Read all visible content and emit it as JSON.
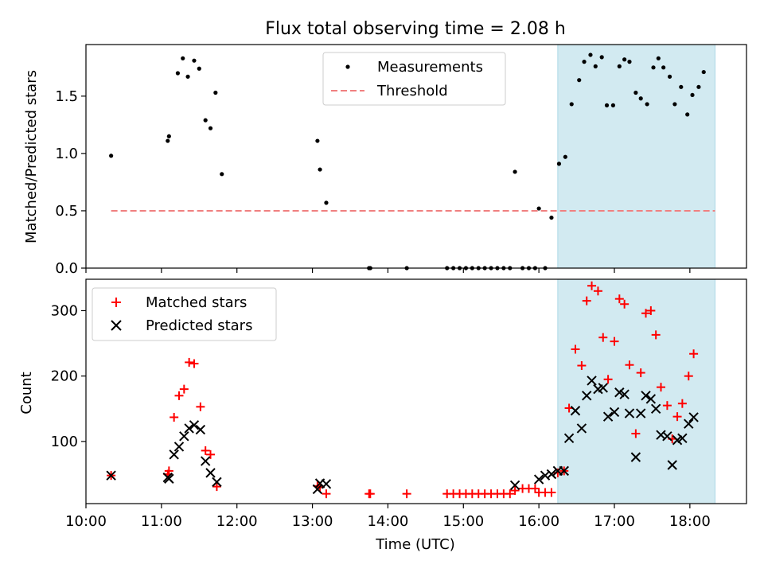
{
  "title": "Flux total observing time = 2.08 h",
  "colors": {
    "measurement": "#000000",
    "threshold": "#f08080",
    "matched": "#ff0000",
    "predicted": "#000000",
    "shade": "#add8e6"
  },
  "chart_data": [
    {
      "type": "scatter",
      "panel": "top",
      "ylabel": "Matched/Predicted stars",
      "ylim": [
        0,
        1.95
      ],
      "yticks": [
        0.0,
        0.5,
        1.0,
        1.5
      ],
      "yticklabels": [
        "0.0",
        "0.5",
        "1.0",
        "1.5"
      ],
      "xlim": [
        "10:00",
        "18:45"
      ],
      "shaded_interval": [
        "16:15",
        "18:20"
      ],
      "legend": {
        "placement": "top-center",
        "entries": [
          "Measurements",
          "Threshold"
        ]
      },
      "threshold": {
        "name": "Threshold",
        "value": 0.5,
        "x": [
          "10:20",
          "18:20"
        ]
      },
      "series": [
        {
          "name": "Measurements",
          "marker": "dot",
          "points": [
            [
              "10:20",
              0.98
            ],
            [
              "11:05",
              1.11
            ],
            [
              "11:06",
              1.15
            ],
            [
              "11:13",
              1.7
            ],
            [
              "11:17",
              1.83
            ],
            [
              "11:21",
              1.67
            ],
            [
              "11:26",
              1.81
            ],
            [
              "11:30",
              1.74
            ],
            [
              "11:35",
              1.29
            ],
            [
              "11:39",
              1.22
            ],
            [
              "11:43",
              1.53
            ],
            [
              "11:48",
              0.82
            ],
            [
              "13:04",
              1.11
            ],
            [
              "13:06",
              0.86
            ],
            [
              "13:11",
              0.57
            ],
            [
              "13:45",
              0.0
            ],
            [
              "13:46",
              0.0
            ],
            [
              "14:15",
              0.0
            ],
            [
              "14:47",
              0.0
            ],
            [
              "14:52",
              0.0
            ],
            [
              "14:57",
              0.0
            ],
            [
              "15:02",
              0.0
            ],
            [
              "15:07",
              0.0
            ],
            [
              "15:12",
              0.0
            ],
            [
              "15:17",
              0.0
            ],
            [
              "15:22",
              0.0
            ],
            [
              "15:27",
              0.0
            ],
            [
              "15:32",
              0.0
            ],
            [
              "15:37",
              0.0
            ],
            [
              "15:41",
              0.84
            ],
            [
              "15:47",
              0.0
            ],
            [
              "15:52",
              0.0
            ],
            [
              "15:57",
              0.0
            ],
            [
              "16:00",
              0.52
            ],
            [
              "16:05",
              0.0
            ],
            [
              "16:10",
              0.44
            ],
            [
              "16:16",
              0.91
            ],
            [
              "16:21",
              0.97
            ],
            [
              "16:26",
              1.43
            ],
            [
              "16:32",
              1.64
            ],
            [
              "16:36",
              1.8
            ],
            [
              "16:41",
              1.86
            ],
            [
              "16:45",
              1.76
            ],
            [
              "16:50",
              1.84
            ],
            [
              "16:54",
              1.42
            ],
            [
              "16:59",
              1.42
            ],
            [
              "17:04",
              1.76
            ],
            [
              "17:08",
              1.82
            ],
            [
              "17:12",
              1.8
            ],
            [
              "17:17",
              1.53
            ],
            [
              "17:21",
              1.48
            ],
            [
              "17:26",
              1.43
            ],
            [
              "17:31",
              1.75
            ],
            [
              "17:35",
              1.83
            ],
            [
              "17:39",
              1.75
            ],
            [
              "17:44",
              1.67
            ],
            [
              "17:48",
              1.43
            ],
            [
              "17:53",
              1.58
            ],
            [
              "17:58",
              1.34
            ],
            [
              "18:02",
              1.51
            ],
            [
              "18:07",
              1.58
            ],
            [
              "18:11",
              1.71
            ]
          ]
        }
      ]
    },
    {
      "type": "scatter",
      "panel": "bottom",
      "ylabel": "Count",
      "xlabel": "Time (UTC)",
      "ylim": [
        5,
        348
      ],
      "yticks": [
        100,
        200,
        300
      ],
      "yticklabels": [
        "100",
        "200",
        "300"
      ],
      "xlim": [
        "10:00",
        "18:45"
      ],
      "xticks": [
        "10:00",
        "11:00",
        "12:00",
        "13:00",
        "14:00",
        "15:00",
        "16:00",
        "17:00",
        "18:00"
      ],
      "shaded_interval": [
        "16:15",
        "18:20"
      ],
      "legend": {
        "placement": "top-left",
        "entries": [
          "Matched stars",
          "Predicted stars"
        ]
      },
      "series": [
        {
          "name": "Matched stars",
          "marker": "plus",
          "points": [
            [
              "10:20",
              48
            ],
            [
              "11:05",
              50
            ],
            [
              "11:06",
              55
            ],
            [
              "11:10",
              137
            ],
            [
              "11:14",
              170
            ],
            [
              "11:18",
              180
            ],
            [
              "11:22",
              221
            ],
            [
              "11:26",
              219
            ],
            [
              "11:31",
              153
            ],
            [
              "11:35",
              86
            ],
            [
              "11:39",
              80
            ],
            [
              "11:44",
              31
            ],
            [
              "13:04",
              32
            ],
            [
              "13:06",
              30
            ],
            [
              "13:11",
              20
            ],
            [
              "13:45",
              20
            ],
            [
              "13:46",
              20
            ],
            [
              "14:15",
              20
            ],
            [
              "14:47",
              20
            ],
            [
              "14:52",
              20
            ],
            [
              "14:57",
              20
            ],
            [
              "15:02",
              20
            ],
            [
              "15:07",
              20
            ],
            [
              "15:12",
              20
            ],
            [
              "15:17",
              20
            ],
            [
              "15:22",
              20
            ],
            [
              "15:27",
              20
            ],
            [
              "15:32",
              20
            ],
            [
              "15:37",
              20
            ],
            [
              "15:41",
              25
            ],
            [
              "15:47",
              28
            ],
            [
              "15:52",
              28
            ],
            [
              "15:57",
              28
            ],
            [
              "16:00",
              22
            ],
            [
              "16:05",
              22
            ],
            [
              "16:10",
              22
            ],
            [
              "16:15",
              52
            ],
            [
              "16:20",
              55
            ],
            [
              "16:24",
              151
            ],
            [
              "16:29",
              241
            ],
            [
              "16:34",
              216
            ],
            [
              "16:38",
              315
            ],
            [
              "16:42",
              338
            ],
            [
              "16:47",
              330
            ],
            [
              "16:51",
              259
            ],
            [
              "16:55",
              195
            ],
            [
              "17:00",
              253
            ],
            [
              "17:04",
              318
            ],
            [
              "17:08",
              310
            ],
            [
              "17:12",
              217
            ],
            [
              "17:17",
              112
            ],
            [
              "17:21",
              205
            ],
            [
              "17:25",
              296
            ],
            [
              "17:29",
              300
            ],
            [
              "17:33",
              263
            ],
            [
              "17:37",
              183
            ],
            [
              "17:42",
              155
            ],
            [
              "17:46",
              104
            ],
            [
              "17:50",
              138
            ],
            [
              "17:54",
              158
            ],
            [
              "17:59",
              200
            ],
            [
              "18:03",
              234
            ]
          ]
        },
        {
          "name": "Predicted stars",
          "marker": "x",
          "points": [
            [
              "10:20",
              48
            ],
            [
              "11:05",
              45
            ],
            [
              "11:06",
              43
            ],
            [
              "11:10",
              80
            ],
            [
              "11:14",
              92
            ],
            [
              "11:18",
              108
            ],
            [
              "11:22",
              120
            ],
            [
              "11:26",
              125
            ],
            [
              "11:31",
              118
            ],
            [
              "11:35",
              70
            ],
            [
              "11:39",
              52
            ],
            [
              "11:44",
              38
            ],
            [
              "13:04",
              27
            ],
            [
              "13:06",
              36
            ],
            [
              "13:11",
              35
            ],
            [
              "15:41",
              33
            ],
            [
              "16:00",
              42
            ],
            [
              "16:05",
              48
            ],
            [
              "16:10",
              50
            ],
            [
              "16:15",
              55
            ],
            [
              "16:20",
              55
            ],
            [
              "16:24",
              105
            ],
            [
              "16:29",
              147
            ],
            [
              "16:34",
              120
            ],
            [
              "16:38",
              170
            ],
            [
              "16:42",
              193
            ],
            [
              "16:47",
              180
            ],
            [
              "16:51",
              182
            ],
            [
              "16:55",
              138
            ],
            [
              "17:00",
              145
            ],
            [
              "17:04",
              175
            ],
            [
              "17:08",
              172
            ],
            [
              "17:12",
              143
            ],
            [
              "17:17",
              76
            ],
            [
              "17:21",
              143
            ],
            [
              "17:25",
              170
            ],
            [
              "17:29",
              165
            ],
            [
              "17:33",
              150
            ],
            [
              "17:37",
              110
            ],
            [
              "17:42",
              108
            ],
            [
              "17:46",
              64
            ],
            [
              "17:50",
              102
            ],
            [
              "17:54",
              105
            ],
            [
              "17:59",
              127
            ],
            [
              "18:03",
              137
            ]
          ]
        }
      ]
    }
  ]
}
